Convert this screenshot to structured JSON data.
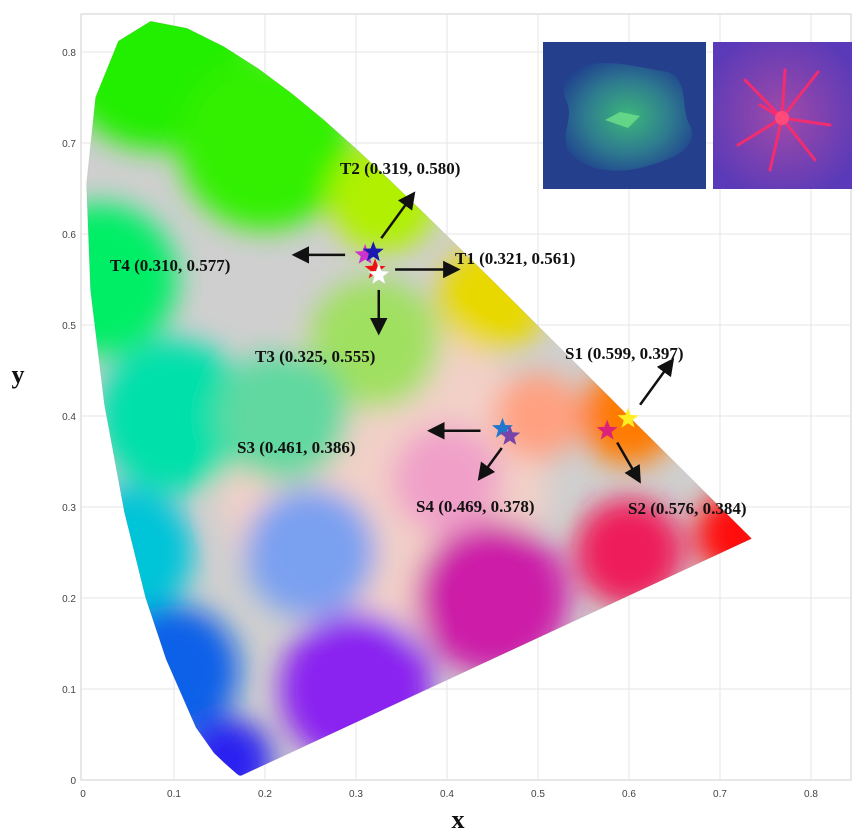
{
  "chart_data": {
    "type": "scatter",
    "title": "",
    "xlabel": "x",
    "ylabel": "y",
    "xlim": [
      0,
      0.85
    ],
    "ylim": [
      0,
      0.85
    ],
    "xticks": [
      "0",
      "0.1",
      "0.2",
      "0.3",
      "0.4",
      "0.5",
      "0.6",
      "0.7",
      "0.8"
    ],
    "yticks": [
      "0",
      "0.1",
      "0.2",
      "0.3",
      "0.4",
      "0.5",
      "0.6",
      "0.7",
      "0.8"
    ],
    "grid": true,
    "background": "CIE 1931 chromaticity diagram",
    "points": [
      {
        "name": "T1",
        "label": "T1 (0.321, 0.561)",
        "x": 0.321,
        "y": 0.561,
        "color": "#ee1111",
        "arrow": "right"
      },
      {
        "name": "T2",
        "label": "T2 (0.319, 0.580)",
        "x": 0.319,
        "y": 0.58,
        "color": "#1a1ab0",
        "arrow": "up-right"
      },
      {
        "name": "T3",
        "label": "T3  (0.325, 0.555)",
        "x": 0.325,
        "y": 0.555,
        "color": "#ffffff",
        "arrow": "down"
      },
      {
        "name": "T4",
        "label": "T4  (0.310, 0.577)",
        "x": 0.31,
        "y": 0.577,
        "color": "#cc33cc",
        "arrow": "left"
      },
      {
        "name": "S1",
        "label": "S1 (0.599, 0.397)",
        "x": 0.599,
        "y": 0.397,
        "color": "#ffee22",
        "arrow": "up-right"
      },
      {
        "name": "S2",
        "label": "S2 (0.576, 0.384)",
        "x": 0.576,
        "y": 0.384,
        "color": "#dd2277",
        "arrow": "down-right"
      },
      {
        "name": "S3",
        "label": "S3  (0.461, 0.386)",
        "x": 0.461,
        "y": 0.386,
        "color": "#2277cc",
        "arrow": "left"
      },
      {
        "name": "S4",
        "label": "S4  (0.469, 0.378)",
        "x": 0.469,
        "y": 0.378,
        "color": "#7744aa",
        "arrow": "down-left"
      }
    ],
    "insets": [
      {
        "name": "green-emission-photo",
        "dominant_color": "#2a6a8a",
        "glow_color": "#33dd66"
      },
      {
        "name": "red-emission-photo",
        "dominant_color": "#6a3aa8",
        "glow_color": "#ff2266"
      }
    ]
  }
}
